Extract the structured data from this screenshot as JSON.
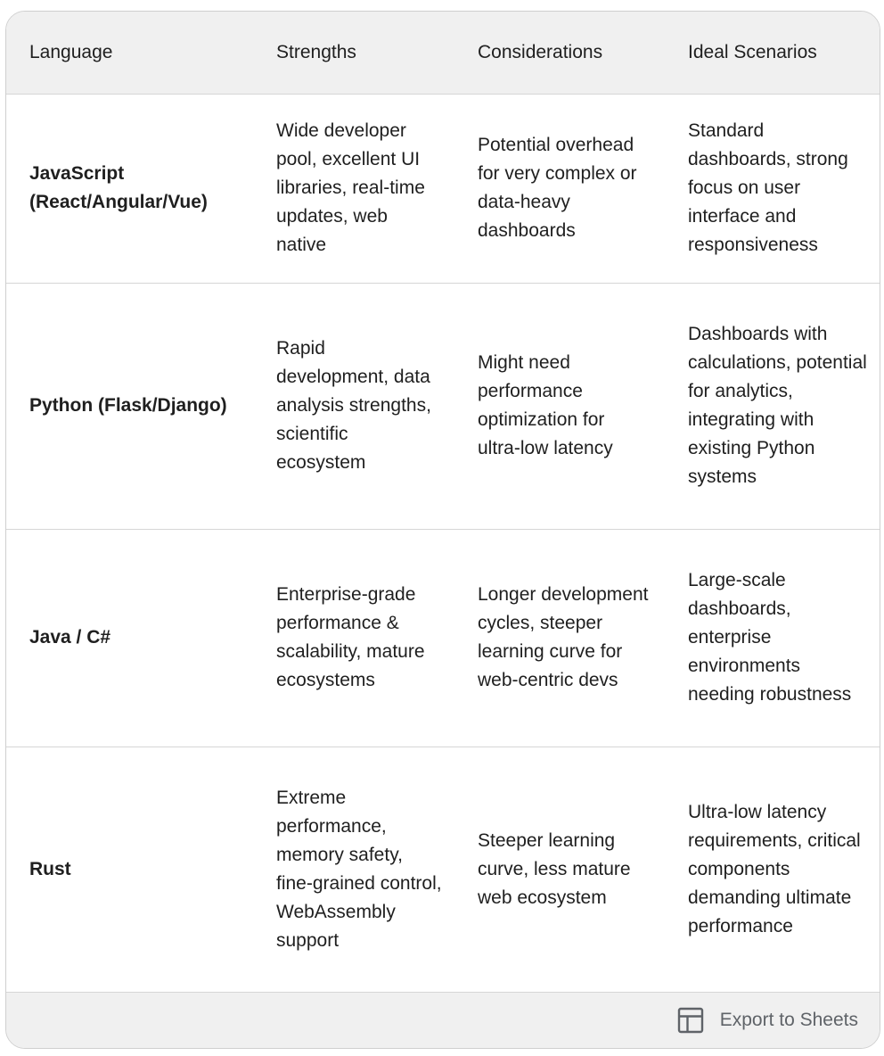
{
  "table": {
    "headers": [
      "Language",
      "Strengths",
      "Considerations",
      "Ideal Scenarios"
    ],
    "rows": [
      {
        "language": "JavaScript (React/Angular/Vue)",
        "strengths": "Wide developer pool, excellent UI libraries, real-time updates, web native",
        "considerations": "Potential overhead for very complex or data-heavy dashboards",
        "scenarios": "Standard dashboards, strong focus on user interface and responsiveness"
      },
      {
        "language": "Python (Flask/Django)",
        "strengths": "Rapid development, data analysis strengths, scientific ecosystem",
        "considerations": "Might need performance optimization for ultra-low latency",
        "scenarios": "Dashboards with calculations, potential for analytics, integrating with existing Python systems"
      },
      {
        "language": "Java / C#",
        "strengths": "Enterprise-grade performance & scalability, mature ecosystems",
        "considerations": "Longer development cycles, steeper learning curve for web-centric devs",
        "scenarios": "Large-scale dashboards, enterprise environments needing robustness"
      },
      {
        "language": "Rust",
        "strengths": "Extreme performance, memory safety, fine-grained control, WebAssembly support",
        "considerations": "Steeper learning curve, less mature web ecosystem",
        "scenarios": "Ultra-low latency requirements, critical components demanding ultimate performance"
      }
    ]
  },
  "footer": {
    "export_label": "Export to Sheets",
    "export_icon": "table-grid-icon"
  },
  "colors": {
    "header_bg": "#f0f0f0",
    "border": "#d6d6d6",
    "text": "#1f1f1f",
    "muted": "#5f6368"
  }
}
